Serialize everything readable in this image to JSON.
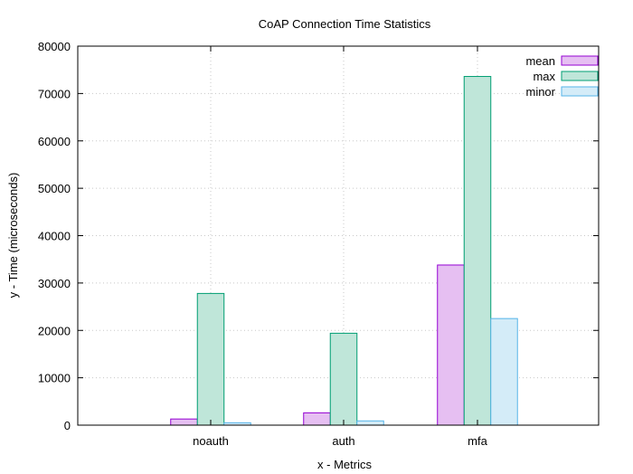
{
  "chart_data": {
    "type": "bar",
    "title": "CoAP Connection Time Statistics",
    "xlabel": "x - Metrics",
    "ylabel": "y - Time (microseconds)",
    "categories": [
      "noauth",
      "auth",
      "mfa"
    ],
    "ylim": [
      0,
      80000
    ],
    "yticks": [
      0,
      10000,
      20000,
      30000,
      40000,
      50000,
      60000,
      70000,
      80000
    ],
    "grid": true,
    "legend_position": "top-right",
    "series": [
      {
        "name": "mean",
        "values": [
          1300,
          2600,
          33800
        ],
        "fill": "#e6bff2",
        "stroke": "#9400d3"
      },
      {
        "name": "max",
        "values": [
          27800,
          19400,
          73600
        ],
        "fill": "#bfe6d9",
        "stroke": "#009e73"
      },
      {
        "name": "minor",
        "values": [
          500,
          900,
          22500
        ],
        "fill": "#d4ecf8",
        "stroke": "#56b4e9"
      }
    ]
  }
}
